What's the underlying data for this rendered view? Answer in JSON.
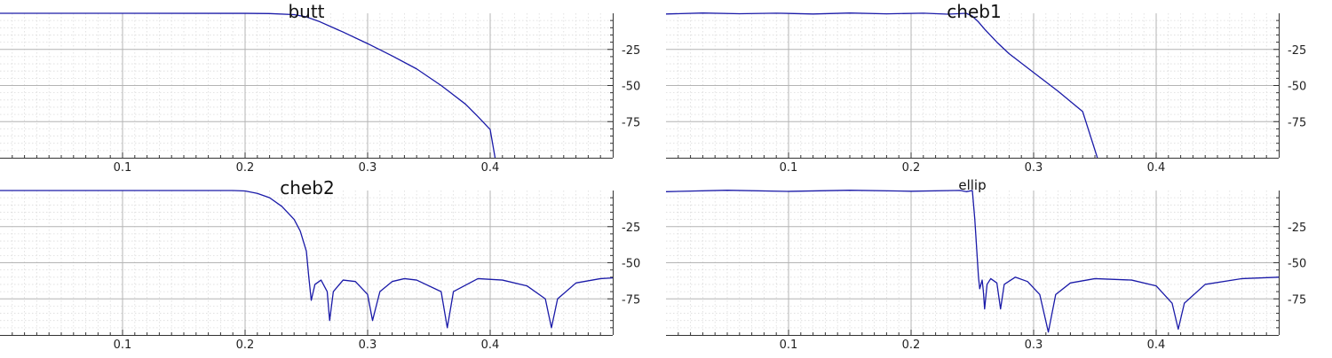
{
  "chart_data": [
    {
      "type": "line",
      "title": "butt",
      "xlim": [
        0,
        0.5
      ],
      "ylim": [
        -100,
        0
      ],
      "x_ticks": [
        "0.1",
        "0.2",
        "0.3",
        "0.4"
      ],
      "y_ticks": [
        "-25",
        "-50",
        "-75"
      ],
      "grid": true,
      "series": [
        {
          "points": [
            [
              0,
              0
            ],
            [
              0.2,
              -0.05
            ],
            [
              0.22,
              -0.2
            ],
            [
              0.24,
              -0.9
            ],
            [
              0.25,
              -2.5
            ],
            [
              0.26,
              -5.5
            ],
            [
              0.28,
              -13
            ],
            [
              0.3,
              -21
            ],
            [
              0.32,
              -29.5
            ],
            [
              0.34,
              -38.5
            ],
            [
              0.36,
              -50
            ],
            [
              0.38,
              -63
            ],
            [
              0.39,
              -71.5
            ],
            [
              0.4,
              -80.5
            ],
            [
              0.404,
              -100
            ]
          ]
        }
      ]
    },
    {
      "type": "line",
      "title": "cheb1",
      "xlim": [
        0,
        0.5
      ],
      "ylim": [
        -100,
        0
      ],
      "x_ticks": [
        "0.1",
        "0.2",
        "0.3",
        "0.4"
      ],
      "y_ticks": [
        "-25",
        "-50",
        "-75"
      ],
      "grid": true,
      "series": [
        {
          "points": [
            [
              0,
              -0.5
            ],
            [
              0.03,
              0.2
            ],
            [
              0.06,
              -0.3
            ],
            [
              0.09,
              0.1
            ],
            [
              0.12,
              -0.5
            ],
            [
              0.15,
              0.2
            ],
            [
              0.18,
              -0.4
            ],
            [
              0.21,
              0.1
            ],
            [
              0.23,
              -0.6
            ],
            [
              0.245,
              0
            ],
            [
              0.25,
              -2
            ],
            [
              0.255,
              -6
            ],
            [
              0.26,
              -11
            ],
            [
              0.27,
              -20
            ],
            [
              0.28,
              -28
            ],
            [
              0.3,
              -41
            ],
            [
              0.32,
              -54
            ],
            [
              0.34,
              -68
            ],
            [
              0.352,
              -100
            ]
          ]
        }
      ]
    },
    {
      "type": "line",
      "title": "cheb2",
      "xlim": [
        0,
        0.5
      ],
      "ylim": [
        -100,
        0
      ],
      "x_ticks": [
        "0.1",
        "0.2",
        "0.3",
        "0.4"
      ],
      "y_ticks": [
        "-25",
        "-50",
        "-75"
      ],
      "grid": true,
      "series": [
        {
          "points": [
            [
              0,
              0
            ],
            [
              0.19,
              0
            ],
            [
              0.2,
              -0.3
            ],
            [
              0.21,
              -2
            ],
            [
              0.22,
              -5
            ],
            [
              0.23,
              -11
            ],
            [
              0.24,
              -20
            ],
            [
              0.245,
              -28
            ],
            [
              0.25,
              -42
            ],
            [
              0.252,
              -60
            ],
            [
              0.254,
              -76
            ],
            [
              0.257,
              -65
            ],
            [
              0.262,
              -62
            ],
            [
              0.267,
              -70
            ],
            [
              0.269,
              -90
            ],
            [
              0.272,
              -70
            ],
            [
              0.28,
              -62
            ],
            [
              0.29,
              -63
            ],
            [
              0.3,
              -72
            ],
            [
              0.304,
              -90
            ],
            [
              0.31,
              -70
            ],
            [
              0.32,
              -63
            ],
            [
              0.33,
              -61
            ],
            [
              0.34,
              -62
            ],
            [
              0.36,
              -70
            ],
            [
              0.365,
              -95
            ],
            [
              0.37,
              -70
            ],
            [
              0.39,
              -61
            ],
            [
              0.41,
              -62
            ],
            [
              0.43,
              -66
            ],
            [
              0.445,
              -75
            ],
            [
              0.45,
              -95
            ],
            [
              0.455,
              -75
            ],
            [
              0.47,
              -64
            ],
            [
              0.49,
              -61
            ],
            [
              0.5,
              -60.5
            ]
          ]
        }
      ]
    },
    {
      "type": "line",
      "title": "ellip",
      "xlim": [
        0,
        0.5
      ],
      "ylim": [
        -100,
        0
      ],
      "x_ticks": [
        "0.1",
        "0.2",
        "0.3",
        "0.4"
      ],
      "y_ticks": [
        "-25",
        "-50",
        "-75"
      ],
      "grid": true,
      "series": [
        {
          "points": [
            [
              0,
              -0.8
            ],
            [
              0.05,
              0.2
            ],
            [
              0.1,
              -0.6
            ],
            [
              0.15,
              0.2
            ],
            [
              0.2,
              -0.5
            ],
            [
              0.24,
              0.1
            ],
            [
              0.245,
              -0.8
            ],
            [
              0.25,
              0
            ],
            [
              0.252,
              -20
            ],
            [
              0.255,
              -60
            ],
            [
              0.256,
              -68
            ],
            [
              0.258,
              -62
            ],
            [
              0.259,
              -70
            ],
            [
              0.26,
              -82
            ],
            [
              0.262,
              -65
            ],
            [
              0.265,
              -61
            ],
            [
              0.27,
              -64
            ],
            [
              0.273,
              -82
            ],
            [
              0.276,
              -65
            ],
            [
              0.285,
              -60
            ],
            [
              0.295,
              -63
            ],
            [
              0.305,
              -72
            ],
            [
              0.312,
              -98
            ],
            [
              0.318,
              -72
            ],
            [
              0.33,
              -64
            ],
            [
              0.35,
              -61
            ],
            [
              0.38,
              -62
            ],
            [
              0.4,
              -66
            ],
            [
              0.413,
              -78
            ],
            [
              0.418,
              -96
            ],
            [
              0.423,
              -78
            ],
            [
              0.44,
              -65
            ],
            [
              0.47,
              -61
            ],
            [
              0.5,
              -60
            ]
          ]
        }
      ]
    }
  ]
}
